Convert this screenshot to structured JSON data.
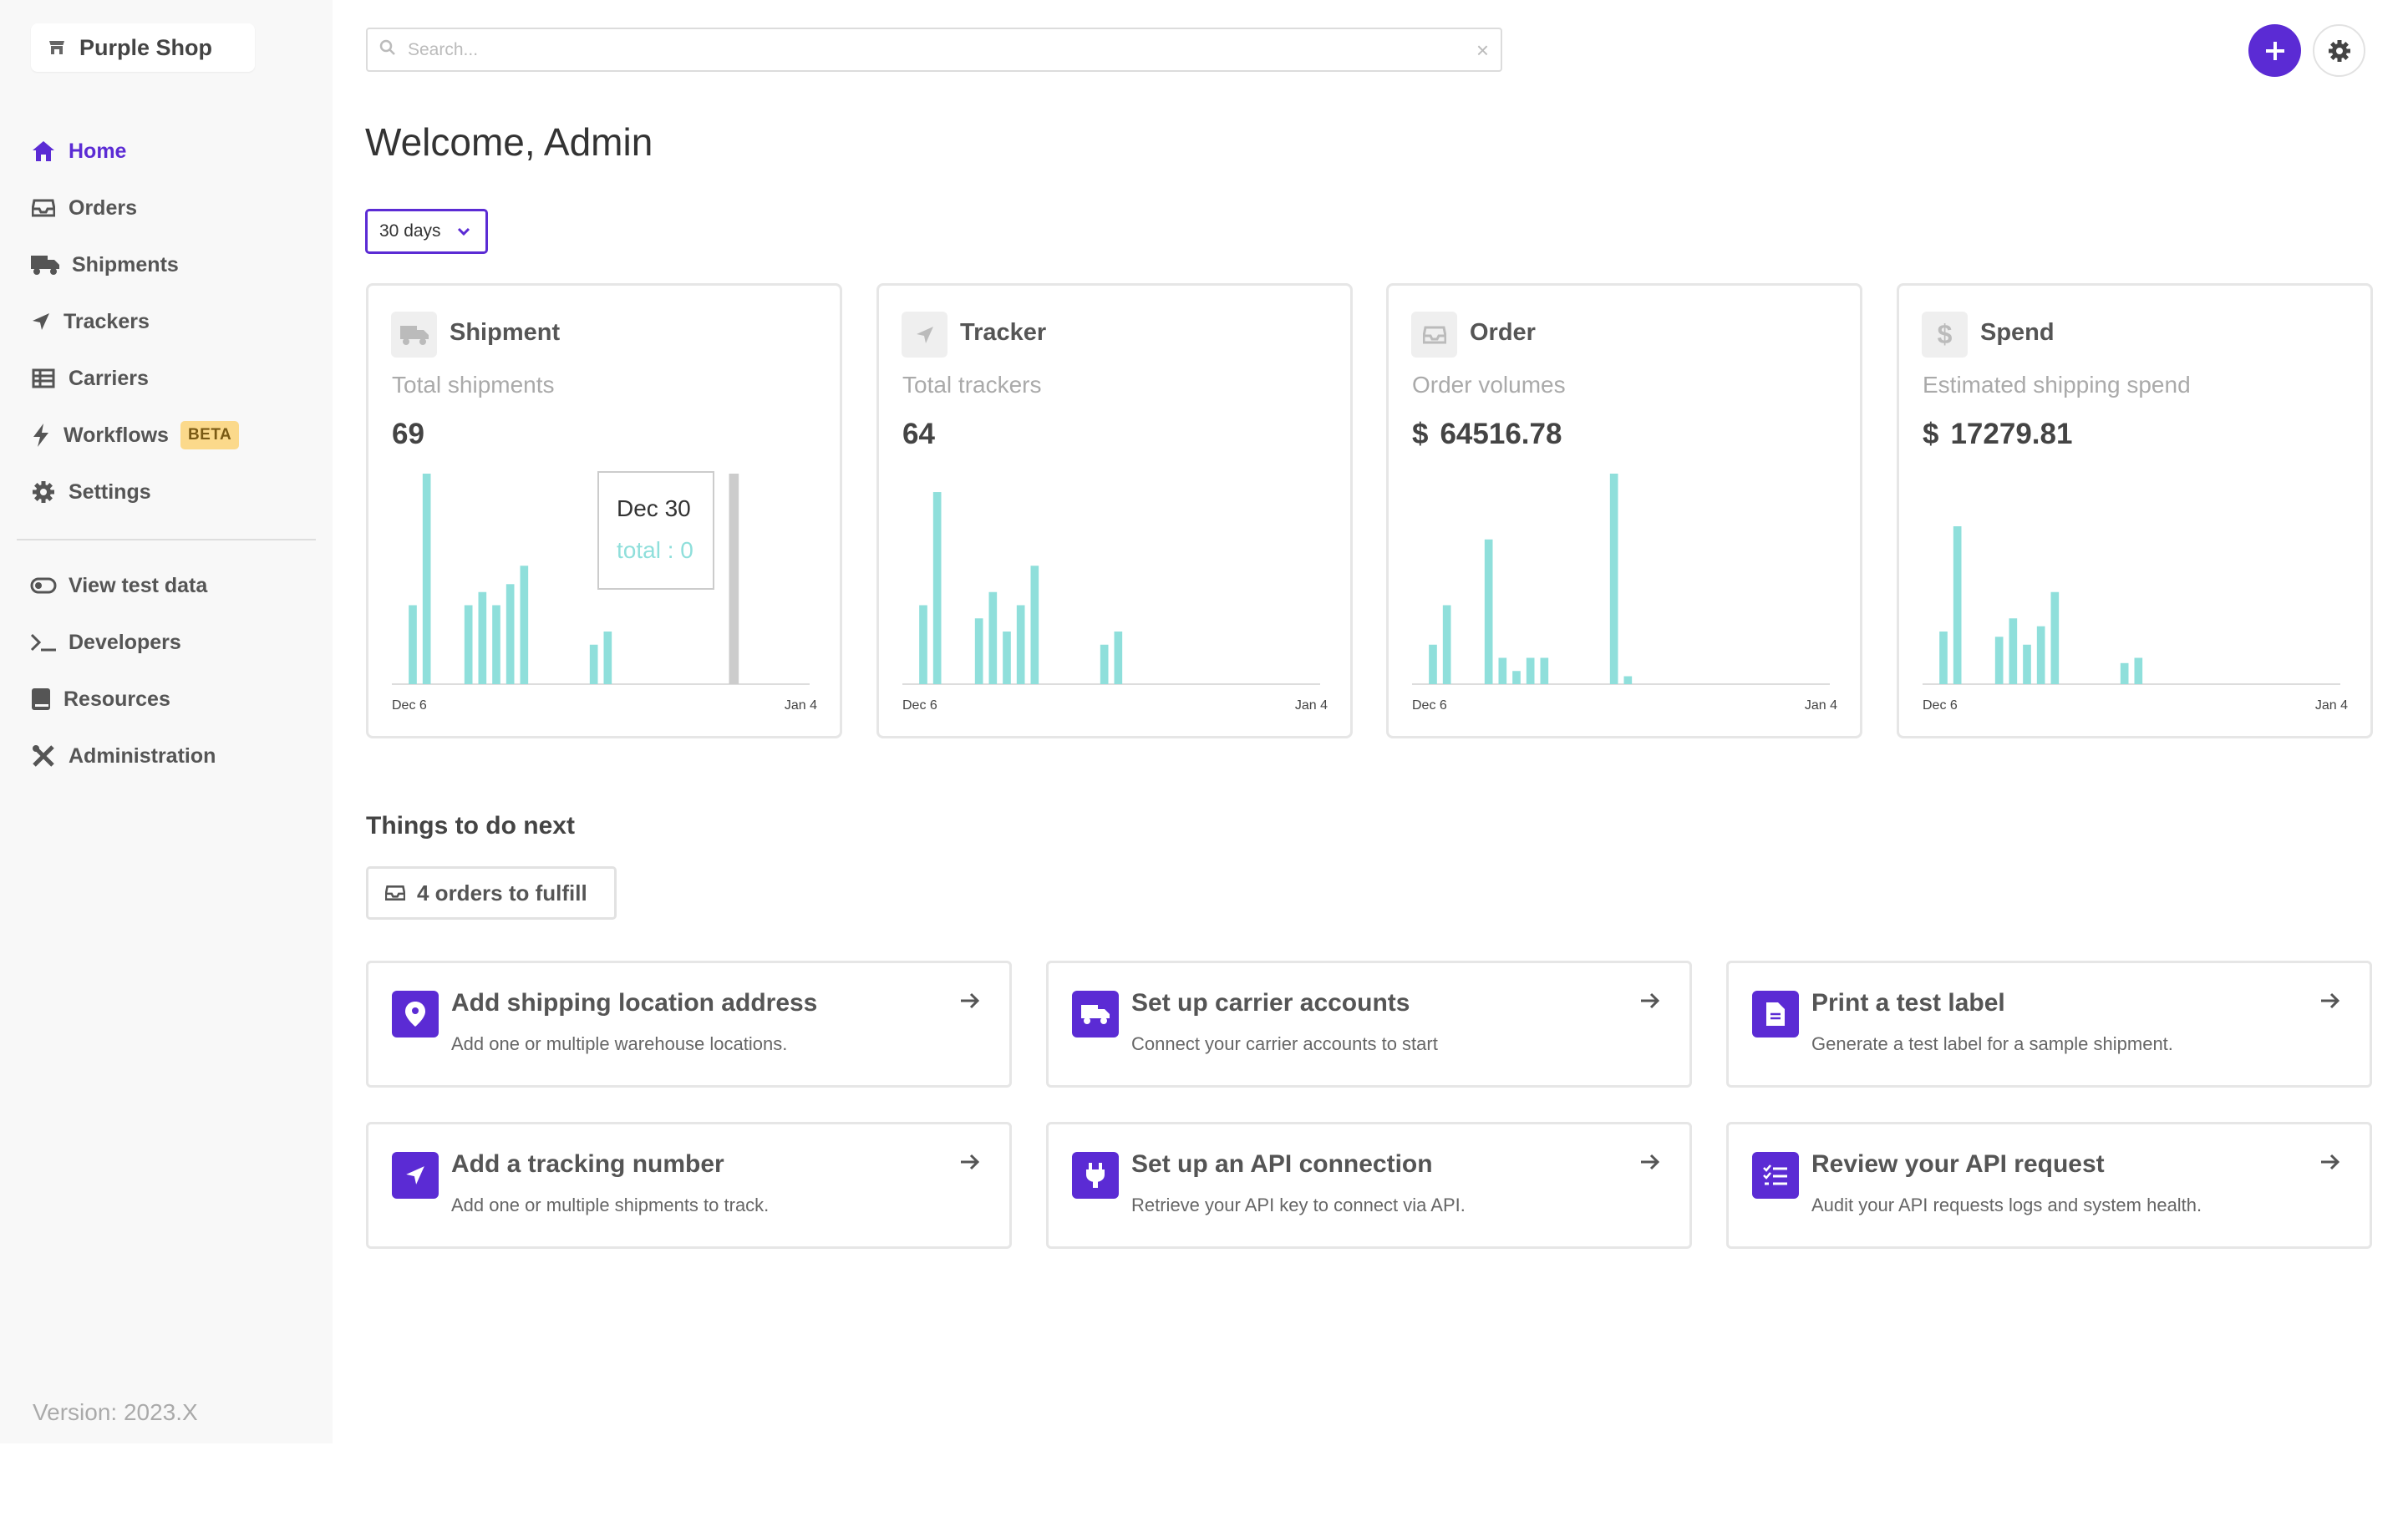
{
  "brand": {
    "name": "Purple Shop"
  },
  "sidebar": {
    "items": [
      {
        "label": "Home"
      },
      {
        "label": "Orders"
      },
      {
        "label": "Shipments"
      },
      {
        "label": "Trackers"
      },
      {
        "label": "Carriers"
      },
      {
        "label": "Workflows",
        "badge": "BETA"
      },
      {
        "label": "Settings"
      },
      {
        "label": "View test data"
      },
      {
        "label": "Developers"
      },
      {
        "label": "Resources"
      },
      {
        "label": "Administration"
      }
    ],
    "version": "Version: 2023.X"
  },
  "header": {
    "search_placeholder": "Search...",
    "clear_symbol": "×"
  },
  "welcome": "Welcome, Admin",
  "period": {
    "selected": "30 days"
  },
  "colors": {
    "accent": "#5b2bd4",
    "bar": "#8fdfdb",
    "highlight_bar": "#cccccc",
    "badge": "#fbd98b"
  },
  "cards": [
    {
      "title": "Shipment",
      "subtitle": "Total shipments",
      "value": "69",
      "currency": ""
    },
    {
      "title": "Tracker",
      "subtitle": "Total trackers",
      "value": "64",
      "currency": ""
    },
    {
      "title": "Order",
      "subtitle": "Order volumes",
      "value": "64516.78",
      "currency": "$"
    },
    {
      "title": "Spend",
      "subtitle": "Estimated shipping spend",
      "value": "17279.81",
      "currency": "$"
    }
  ],
  "tooltip": {
    "date": "Dec 30",
    "text": "total : 0"
  },
  "chart_data": [
    {
      "type": "bar",
      "title": "Shipment",
      "x_start_label": "Dec 6",
      "x_end_label": "Jan 4",
      "values": [
        0,
        3,
        8,
        0,
        0,
        3,
        3.5,
        3,
        3.8,
        4.5,
        0,
        0,
        0,
        0,
        1.5,
        2,
        0,
        0,
        0,
        0,
        0,
        0,
        0,
        0,
        0,
        0,
        0,
        0,
        0,
        0
      ]
    },
    {
      "type": "bar",
      "title": "Tracker",
      "x_start_label": "Dec 6",
      "x_end_label": "Jan 4",
      "values": [
        0,
        3,
        7.3,
        0,
        0,
        2.5,
        3.5,
        2,
        3,
        4.5,
        0,
        0,
        0,
        0,
        1.5,
        2,
        0,
        0,
        0,
        0,
        0,
        0,
        0,
        0,
        0,
        0,
        0,
        0,
        0,
        0
      ]
    },
    {
      "type": "bar",
      "title": "Order",
      "x_start_label": "Dec 6",
      "x_end_label": "Jan 4",
      "values": [
        0,
        1.5,
        3,
        0,
        0,
        5.5,
        1,
        0.5,
        1,
        1,
        0,
        0,
        0,
        0,
        8,
        0.3,
        0,
        0,
        0,
        0,
        0,
        0,
        0,
        0,
        0,
        0,
        0,
        0,
        0,
        0
      ]
    },
    {
      "type": "bar",
      "title": "Spend",
      "x_start_label": "Dec 6",
      "x_end_label": "Jan 4",
      "values": [
        0,
        2,
        6,
        0,
        0,
        1.8,
        2.5,
        1.5,
        2.2,
        3.5,
        0,
        0,
        0,
        0,
        0.8,
        1,
        0,
        0,
        0,
        0,
        0,
        0,
        0,
        0,
        0,
        0,
        0,
        0,
        0,
        0
      ]
    }
  ],
  "todo": {
    "title": "Things to do next",
    "fulfill": "4 orders to fulfill",
    "tasks": [
      {
        "title": "Add shipping location address",
        "desc": "Add one or multiple warehouse locations.",
        "icon": "map-pin-icon"
      },
      {
        "title": "Set up carrier accounts",
        "desc": "Connect your carrier accounts to start",
        "icon": "truck-icon"
      },
      {
        "title": "Print a test label",
        "desc": "Generate a test label for a sample shipment.",
        "icon": "file-icon"
      },
      {
        "title": "Add a tracking number",
        "desc": "Add one or multiple shipments to track.",
        "icon": "location-arrow-icon"
      },
      {
        "title": "Set up an API connection",
        "desc": "Retrieve your API key to connect via API.",
        "icon": "plug-icon"
      },
      {
        "title": "Review your API request",
        "desc": "Audit your API requests logs and system health.",
        "icon": "checklist-icon"
      }
    ]
  }
}
